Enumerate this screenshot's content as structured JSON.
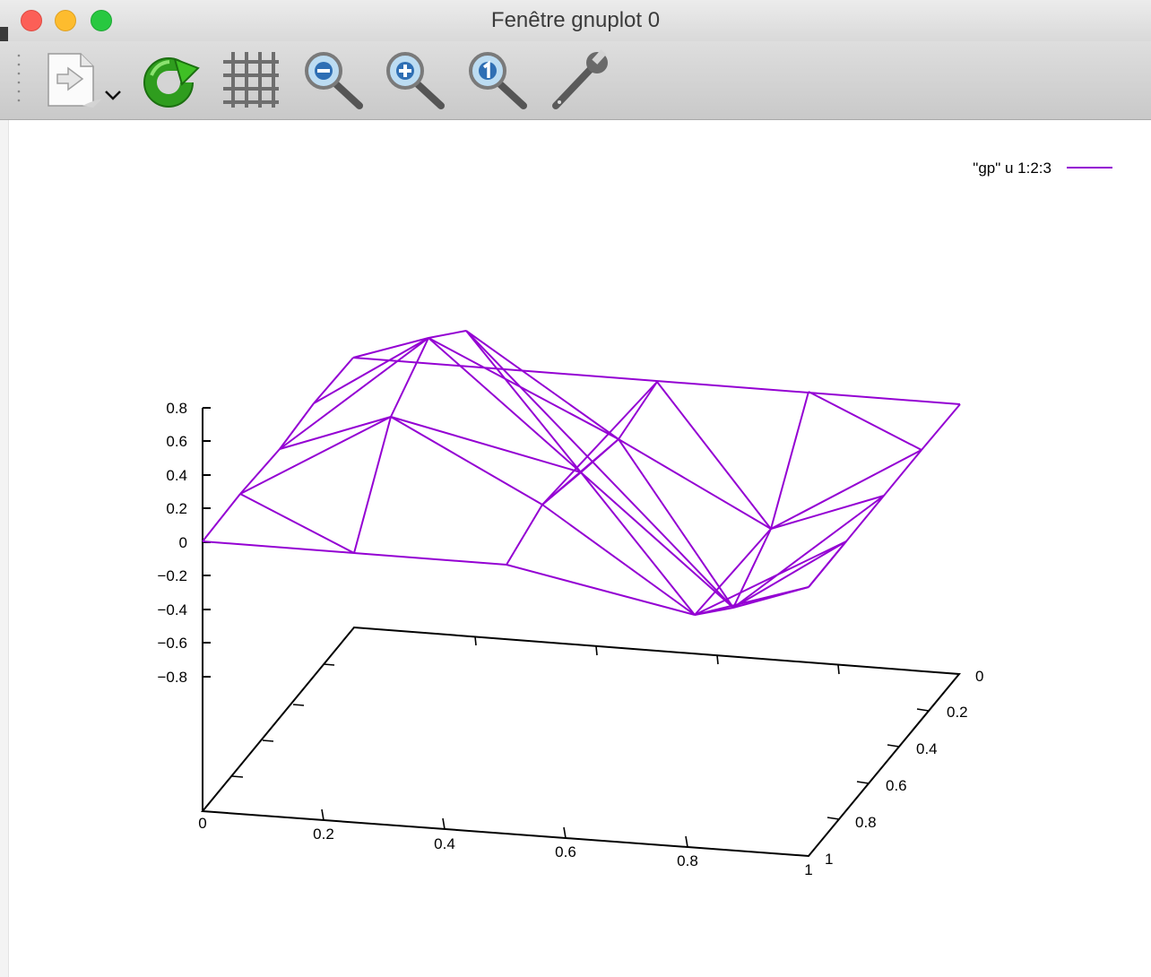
{
  "window": {
    "title": "Fenêtre gnuplot 0"
  },
  "toolbar": {
    "buttons": [
      {
        "name": "export-button",
        "icon": "export-document-icon"
      },
      {
        "name": "replot-button",
        "icon": "refresh-icon"
      },
      {
        "name": "grid-button",
        "icon": "grid-icon"
      },
      {
        "name": "zoom-out-button",
        "icon": "zoom-out-icon"
      },
      {
        "name": "zoom-in-button",
        "icon": "zoom-in-icon"
      },
      {
        "name": "zoom-reset-button",
        "icon": "zoom-reset-icon"
      },
      {
        "name": "settings-button",
        "icon": "wrench-icon"
      }
    ]
  },
  "colors": {
    "series": "#9400d3",
    "axis": "#000000"
  },
  "chart_data": {
    "type": "surface-3d-wireframe",
    "legend": {
      "label": "\"gp\" u 1:2:3",
      "placement": "top-right"
    },
    "x_ticks": [
      "0",
      "0.2",
      "0.4",
      "0.6",
      "0.8",
      "1"
    ],
    "y_ticks": [
      "0",
      "0.2",
      "0.4",
      "0.6",
      "0.8",
      "1"
    ],
    "z_ticks": [
      "0.8",
      "0.6",
      "0.4",
      "0.2",
      "0",
      "−0.2",
      "−0.4",
      "−0.6",
      "−0.8"
    ],
    "xlim": [
      0,
      1
    ],
    "ylim": [
      0,
      1
    ],
    "zlim": [
      -0.8,
      0.8
    ]
  }
}
